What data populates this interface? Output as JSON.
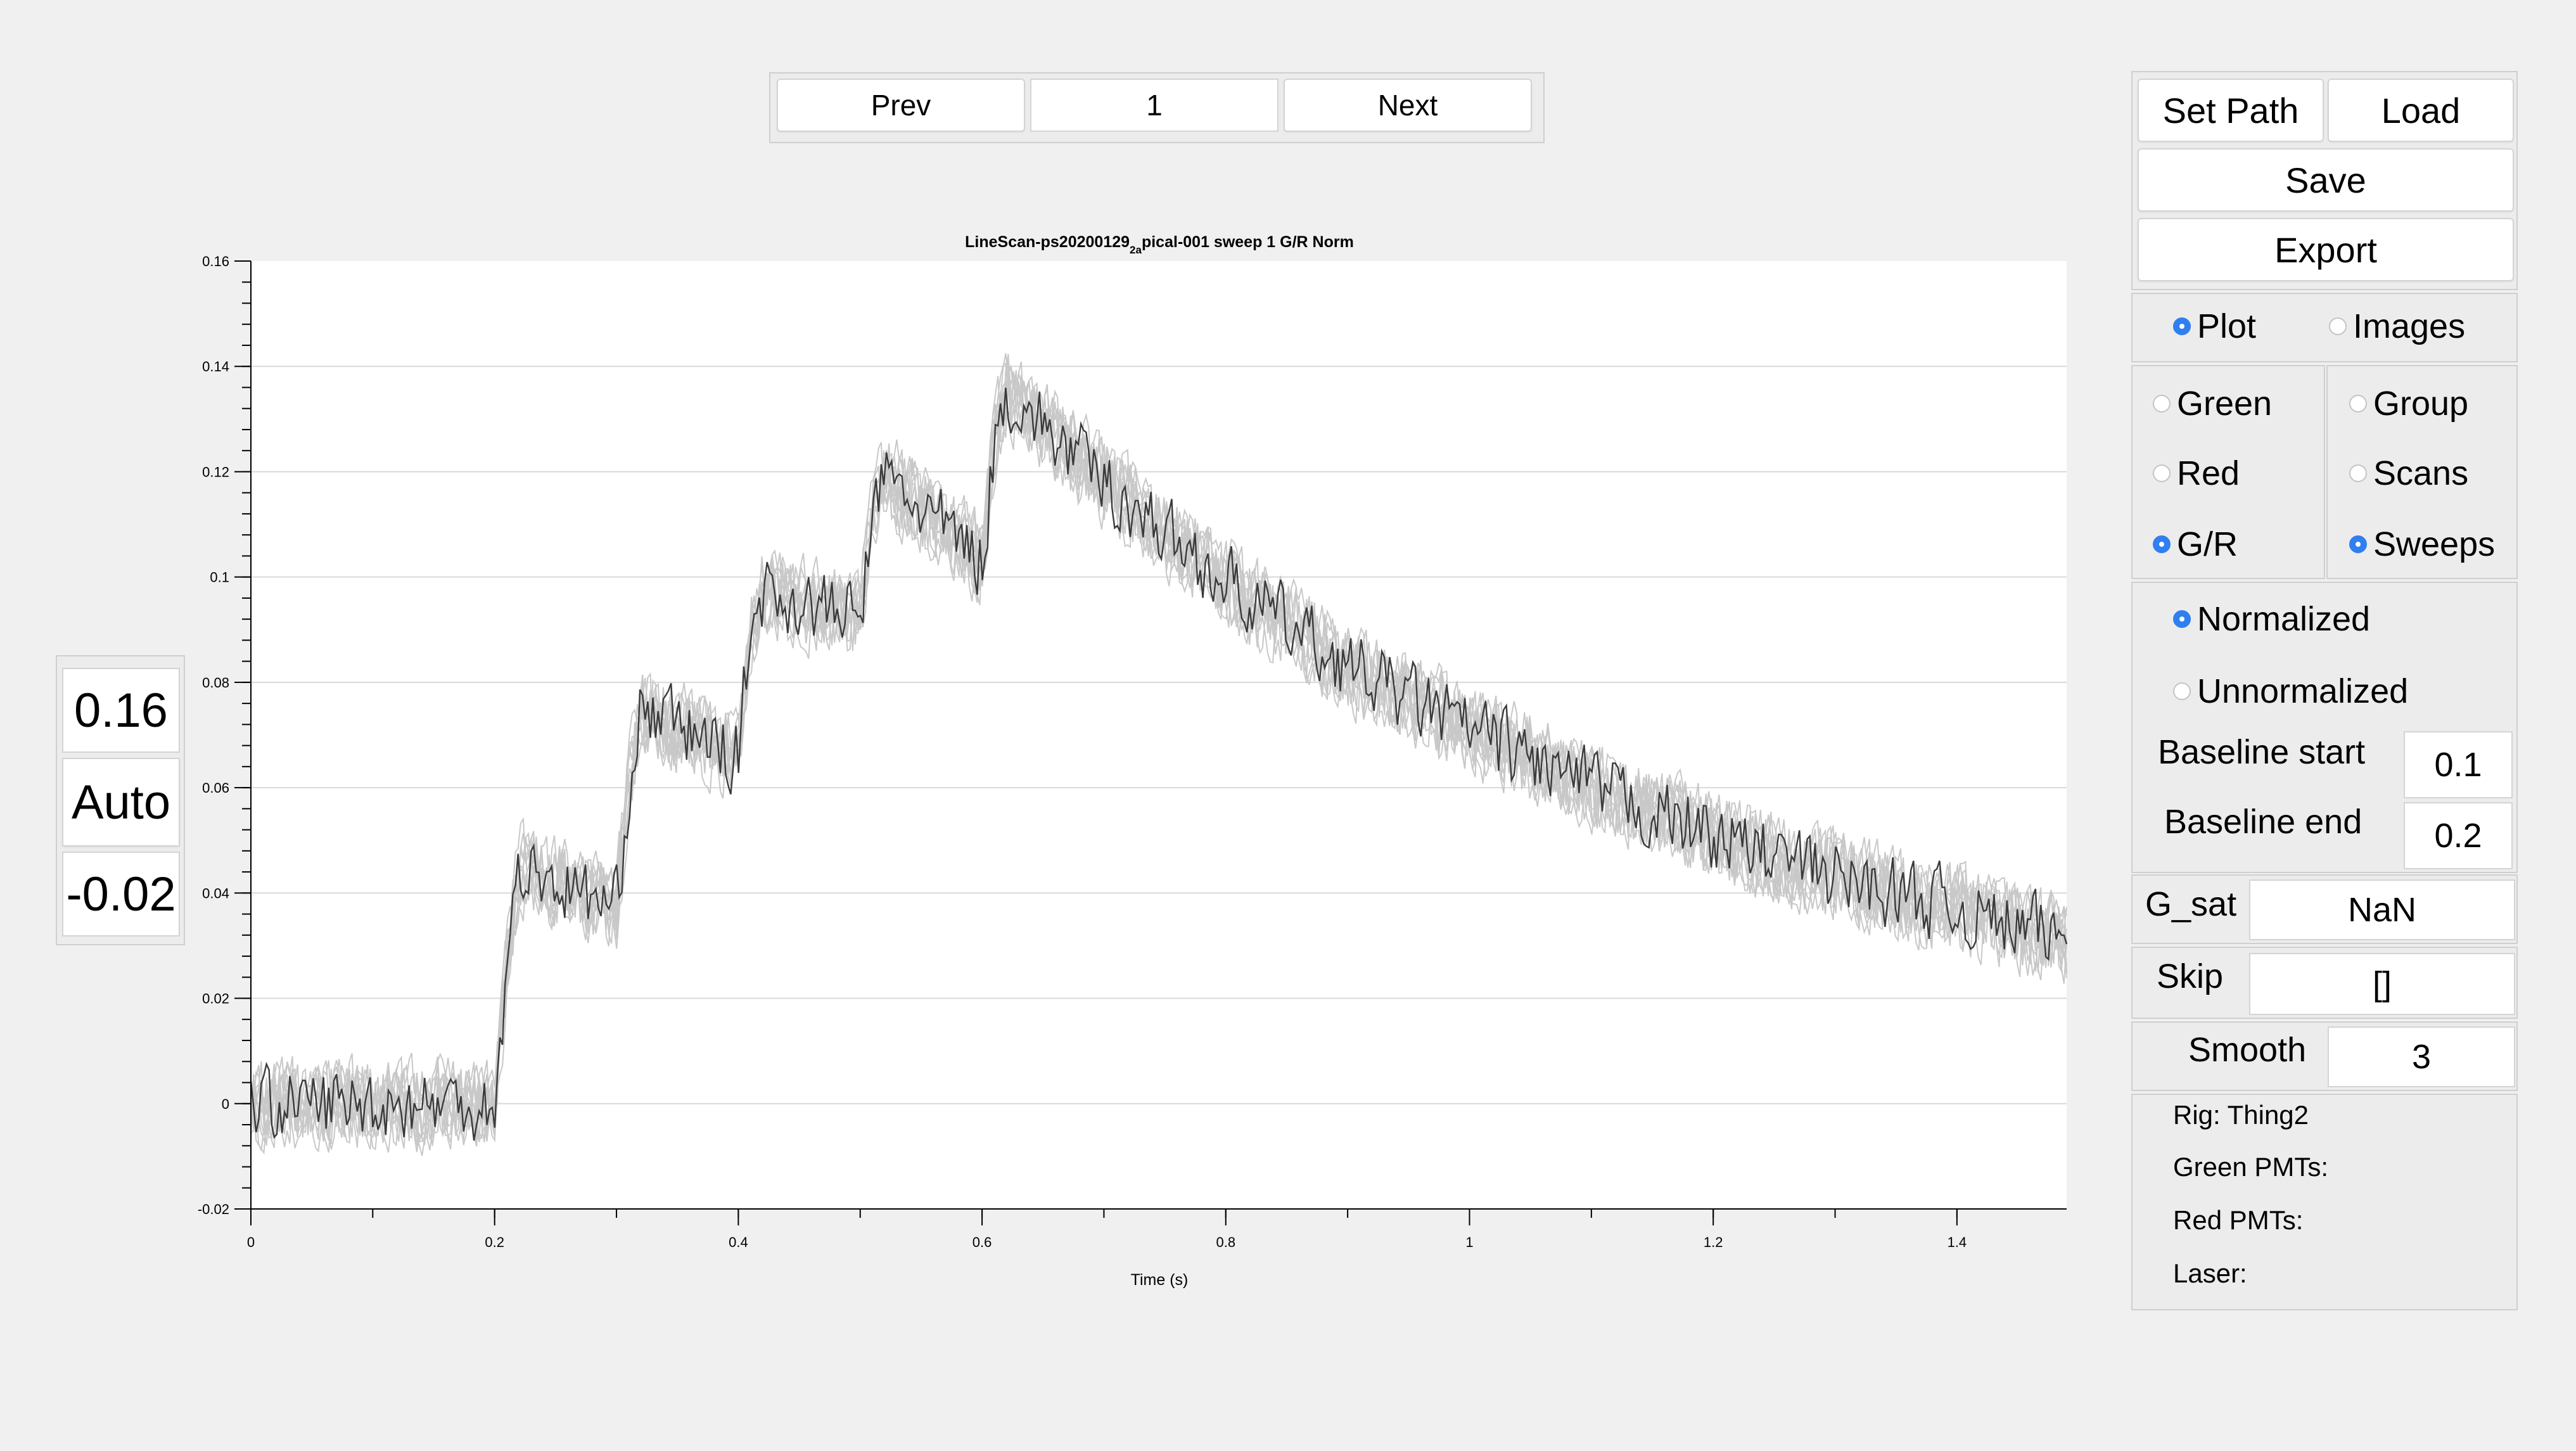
{
  "nav": {
    "prev_label": "Prev",
    "page_value": "1",
    "next_label": "Next"
  },
  "axis_controls": {
    "ymax": "0.16",
    "mode": "Auto",
    "ymin": "-0.02"
  },
  "file_buttons": {
    "set_path": "Set Path",
    "load": "Load",
    "save": "Save",
    "export": "Export"
  },
  "view_mode": {
    "options": [
      {
        "label": "Plot",
        "selected": true
      },
      {
        "label": "Images",
        "selected": false
      }
    ]
  },
  "channel": {
    "options": [
      {
        "label": "Green",
        "selected": false
      },
      {
        "label": "Red",
        "selected": false
      },
      {
        "label": "G/R",
        "selected": true
      }
    ]
  },
  "grouping": {
    "options": [
      {
        "label": "Group",
        "selected": false
      },
      {
        "label": "Scans",
        "selected": false
      },
      {
        "label": "Sweeps",
        "selected": true
      }
    ]
  },
  "normalization": {
    "options": [
      {
        "label": "Normalized",
        "selected": true
      },
      {
        "label": "Unnormalized",
        "selected": false
      }
    ],
    "baseline_start_label": "Baseline start",
    "baseline_start_value": "0.1",
    "baseline_end_label": "Baseline end",
    "baseline_end_value": "0.2"
  },
  "params": {
    "gsat_label": "G_sat",
    "gsat_value": "NaN",
    "skip_label": "Skip",
    "skip_value": "[]",
    "smooth_label": "Smooth",
    "smooth_value": "3"
  },
  "info": {
    "rig": "Rig: Thing2",
    "green_pmts": "Green PMTs:",
    "red_pmts": "Red PMTs:",
    "laser": "Laser:"
  },
  "colors": {
    "radio_selected": "#2f7ff0",
    "mean_trace": "#3a3a3a",
    "sweep_traces": "#c8c8c8"
  },
  "chart_data": {
    "type": "line",
    "title_main": "LineScan-ps20200129",
    "title_sub": "2a",
    "title_rest": "pical-001 sweep 1 G/R Norm",
    "xlabel": "Time (s)",
    "ylabel": "",
    "xlim": [
      0,
      1.49
    ],
    "ylim": [
      -0.02,
      0.16
    ],
    "x_ticks": [
      0,
      0.2,
      0.4,
      0.6,
      0.8,
      1,
      1.2,
      1.4
    ],
    "x_tick_labels": [
      "0",
      "0.2",
      "0.4",
      "0.6",
      "0.8",
      "1",
      "1.2",
      "1.4"
    ],
    "y_ticks": [
      -0.02,
      0,
      0.02,
      0.04,
      0.06,
      0.08,
      0.1,
      0.12,
      0.14,
      0.16
    ],
    "y_tick_labels": [
      "-0.02",
      "0",
      "0.02",
      "0.04",
      "0.06",
      "0.08",
      "0.1",
      "0.12",
      "0.14",
      "0.16"
    ],
    "grid": "y-major",
    "series": [
      {
        "x": [
          0,
          0.19,
          0.2,
          0.21,
          0.22,
          0.3,
          0.31,
          0.32,
          0.4,
          0.41,
          0.42,
          0.5,
          0.51,
          0.52,
          0.6,
          0.61,
          0.62,
          0.7,
          0.8,
          0.9,
          1.0,
          1.1,
          1.2,
          1.3,
          1.4,
          1.49
        ],
        "y": [
          0,
          0,
          0,
          0.025,
          0.045,
          0.037,
          0.06,
          0.075,
          0.066,
          0.09,
          0.097,
          0.092,
          0.112,
          0.119,
          0.103,
          0.125,
          0.135,
          0.118,
          0.099,
          0.083,
          0.071,
          0.06,
          0.051,
          0.043,
          0.037,
          0.031
        ]
      }
    ],
    "sweep_count": 10
  }
}
